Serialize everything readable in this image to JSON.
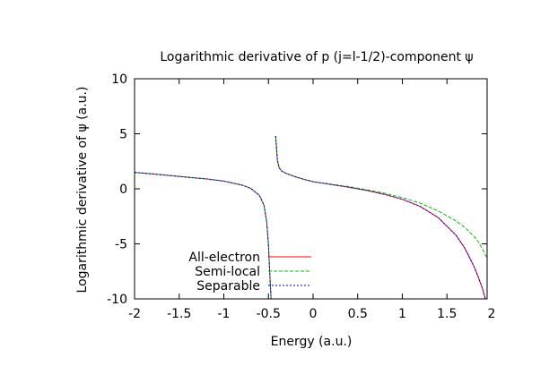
{
  "chart_data": {
    "type": "line",
    "title": "Logarithmic derivative of p (j=l-1/2)-component ψ",
    "xlabel": "Energy (a.u.)",
    "ylabel": "Logarithmic derivative of ψ (a.u.)",
    "xlim": [
      -2,
      1.95
    ],
    "ylim": [
      -10,
      10
    ],
    "xticks": [
      -2,
      -1.5,
      -1,
      -0.5,
      0,
      0.5,
      1,
      1.5,
      2
    ],
    "yticks": [
      -10,
      -5,
      0,
      5,
      10
    ],
    "xtick_labels": [
      "-2",
      "-1.5",
      "-1",
      "-0.5",
      "0",
      "0.5",
      "1",
      "1.5",
      "2"
    ],
    "ytick_labels": [
      "-10",
      "-5",
      "0",
      "5",
      "10"
    ],
    "grid": false,
    "legend_position": "bottom-left",
    "series": [
      {
        "name": "All-electron",
        "color": "#ff0000",
        "dash": "solid",
        "x": [
          -2.0,
          -1.8,
          -1.6,
          -1.4,
          -1.2,
          -1.0,
          -0.8,
          -0.7,
          -0.6,
          -0.55,
          -0.52,
          -0.5,
          -0.48,
          -0.47,
          null,
          -0.42,
          -0.41,
          -0.4,
          -0.38,
          -0.35,
          -0.3,
          -0.2,
          -0.1,
          0.0,
          0.2,
          0.4,
          0.6,
          0.8,
          1.0,
          1.2,
          1.4,
          1.6,
          1.7,
          1.8,
          1.85,
          1.9,
          1.93
        ],
        "y": [
          1.5,
          1.35,
          1.2,
          1.05,
          0.9,
          0.7,
          0.35,
          0.05,
          -0.6,
          -1.5,
          -3.0,
          -5.0,
          -8.5,
          -10.0,
          null,
          4.8,
          3.8,
          2.6,
          1.9,
          1.6,
          1.4,
          1.1,
          0.85,
          0.65,
          0.4,
          0.15,
          -0.15,
          -0.5,
          -0.95,
          -1.6,
          -2.6,
          -4.2,
          -5.4,
          -7.0,
          -8.0,
          -9.1,
          -10.0
        ]
      },
      {
        "name": "Semi-local",
        "color": "#00c000",
        "dash": "dashed",
        "x": [
          -2.0,
          -1.8,
          -1.6,
          -1.4,
          -1.2,
          -1.0,
          -0.8,
          -0.7,
          -0.6,
          -0.55,
          -0.52,
          -0.5,
          -0.48,
          -0.47,
          null,
          -0.42,
          -0.41,
          -0.4,
          -0.38,
          -0.35,
          -0.3,
          -0.2,
          -0.1,
          0.0,
          0.2,
          0.4,
          0.6,
          0.8,
          1.0,
          1.2,
          1.4,
          1.6,
          1.7,
          1.8,
          1.85,
          1.9,
          1.95
        ],
        "y": [
          1.5,
          1.35,
          1.2,
          1.05,
          0.9,
          0.7,
          0.35,
          0.05,
          -0.6,
          -1.5,
          -3.0,
          -5.0,
          -8.5,
          -10.0,
          null,
          4.8,
          3.8,
          2.6,
          1.9,
          1.6,
          1.4,
          1.1,
          0.85,
          0.65,
          0.42,
          0.2,
          -0.08,
          -0.4,
          -0.8,
          -1.3,
          -2.0,
          -2.9,
          -3.5,
          -4.3,
          -4.8,
          -5.5,
          -6.3
        ]
      },
      {
        "name": "Separable",
        "color": "#0000ff",
        "dash": "dotted",
        "x": [
          -2.0,
          -1.8,
          -1.6,
          -1.4,
          -1.2,
          -1.0,
          -0.8,
          -0.7,
          -0.6,
          -0.55,
          -0.52,
          -0.5,
          -0.48,
          -0.47,
          null,
          -0.42,
          -0.41,
          -0.4,
          -0.38,
          -0.35,
          -0.3,
          -0.2,
          -0.1,
          0.0,
          0.2,
          0.4,
          0.6,
          0.8,
          1.0,
          1.2,
          1.4,
          1.6,
          1.7,
          1.8,
          1.85,
          1.9,
          1.93
        ],
        "y": [
          1.5,
          1.35,
          1.2,
          1.05,
          0.9,
          0.7,
          0.35,
          0.05,
          -0.6,
          -1.5,
          -3.0,
          -5.0,
          -8.5,
          -10.0,
          null,
          4.8,
          3.8,
          2.6,
          1.9,
          1.6,
          1.4,
          1.1,
          0.85,
          0.65,
          0.4,
          0.15,
          -0.15,
          -0.5,
          -0.95,
          -1.6,
          -2.6,
          -4.2,
          -5.4,
          -7.0,
          -8.0,
          -9.1,
          -10.0
        ]
      }
    ]
  }
}
